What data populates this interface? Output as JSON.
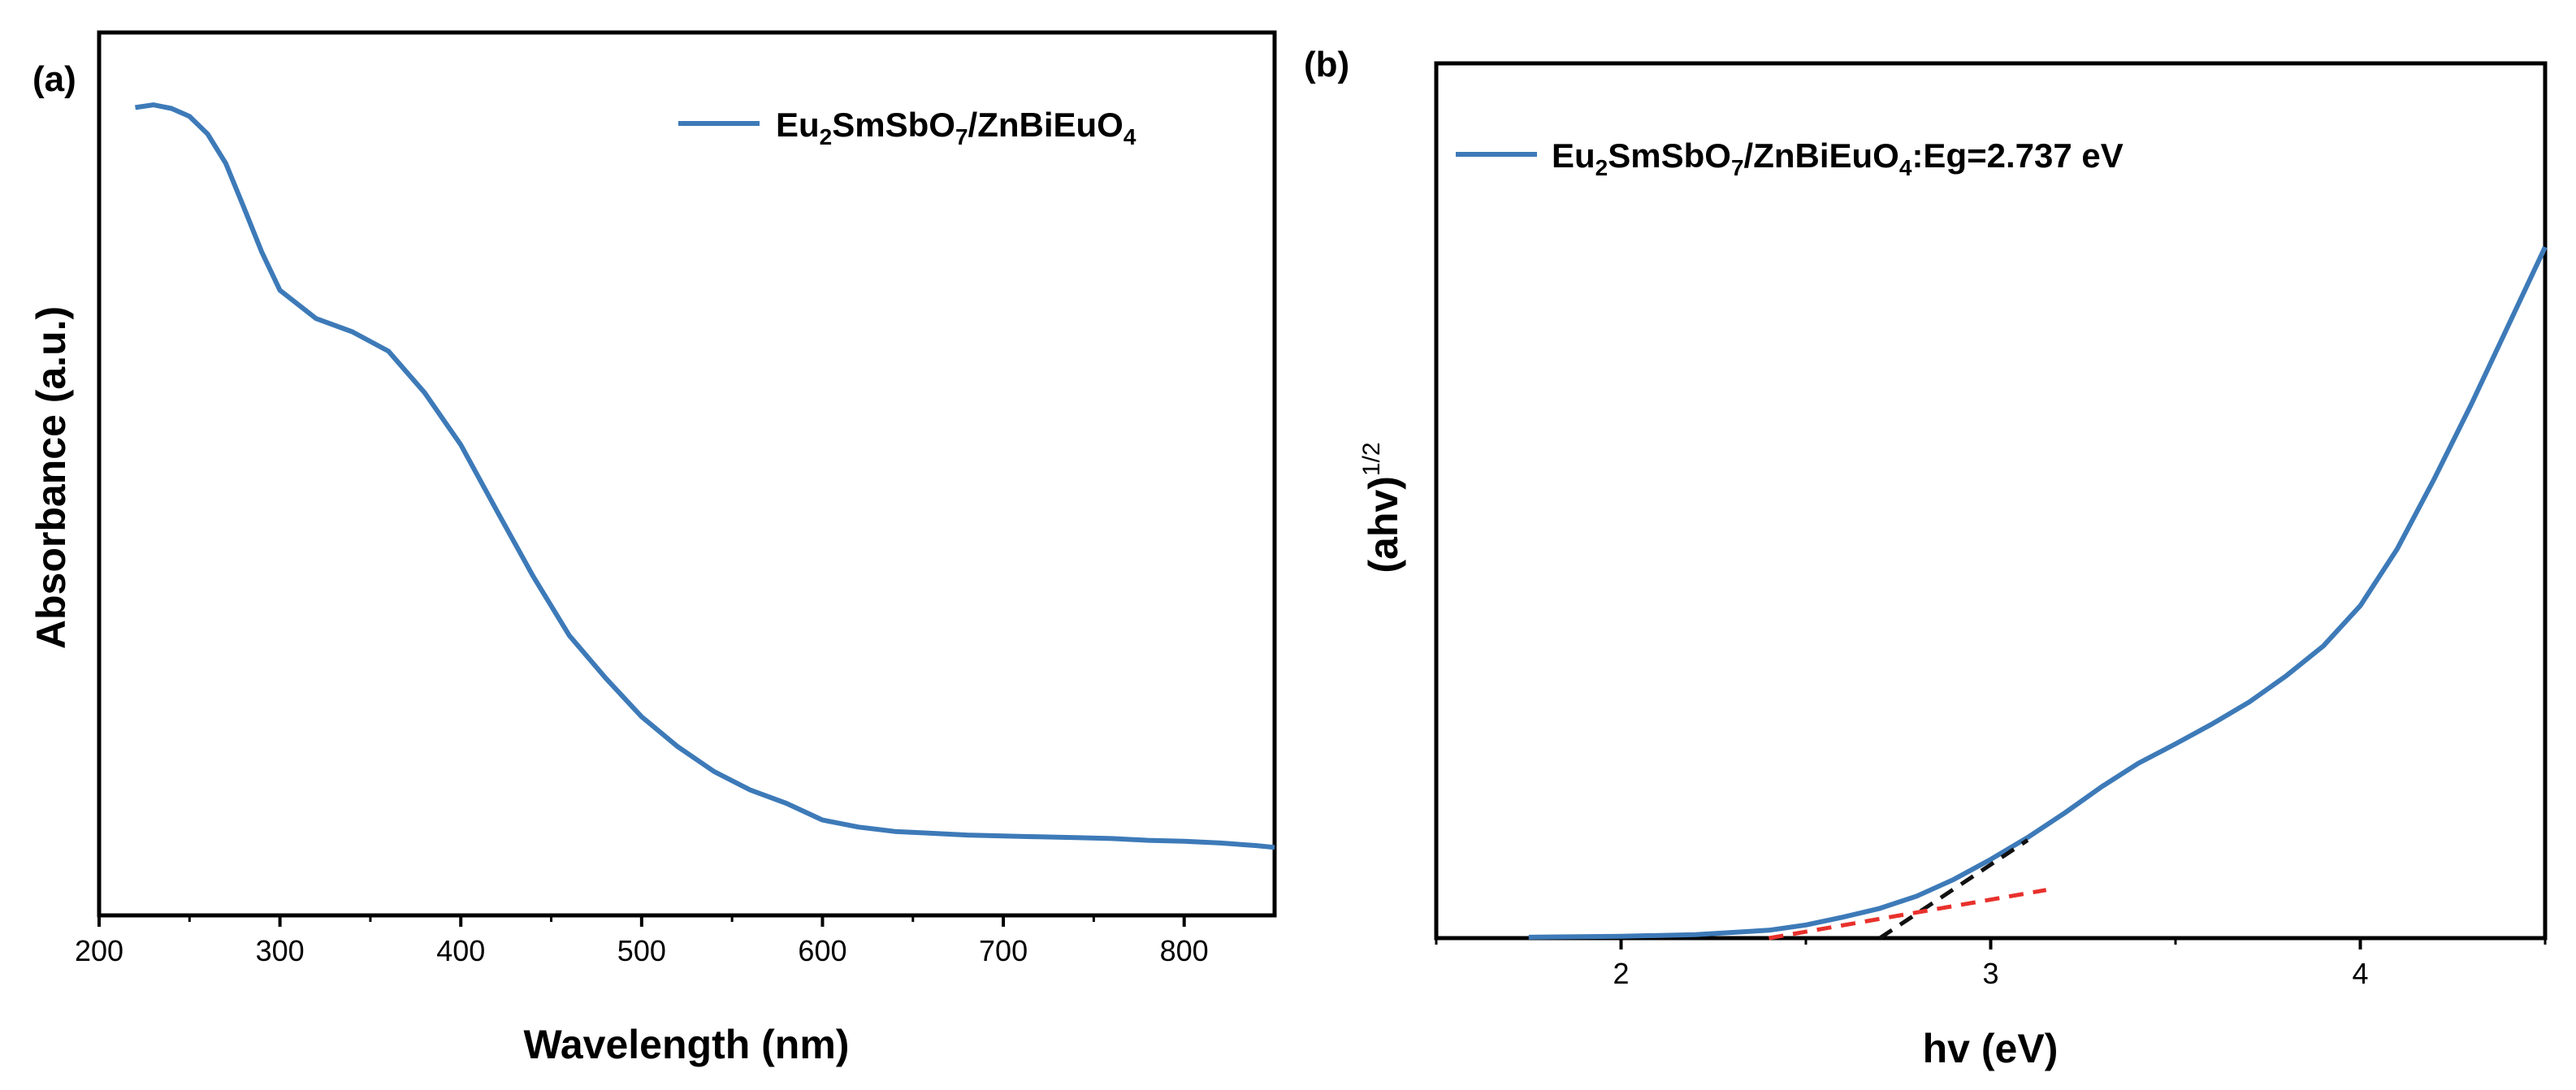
{
  "figure": {
    "panel_a_label": "(a)",
    "panel_b_label": "(b)"
  },
  "colors": {
    "series": "#3d7ab8",
    "fit_black": "#111111",
    "fit_red": "#e8312c",
    "axes": "#000000"
  },
  "chart_data": [
    {
      "type": "line",
      "panel": "(a)",
      "title": "",
      "xlabel": "Wavelength (nm)",
      "ylabel": "Absorbance (a.u.)",
      "xlim": [
        200,
        850
      ],
      "ylim": [
        0,
        1.0
      ],
      "xticks": [
        200,
        300,
        400,
        500,
        600,
        700,
        800
      ],
      "xtick_labels": [
        "200",
        "300",
        "400",
        "500",
        "600",
        "700",
        "800"
      ],
      "yticks_shown": false,
      "legend": {
        "position": "top-right",
        "parts": [
          {
            "text": "Eu",
            "sub": false
          },
          {
            "text": "2",
            "sub": true
          },
          {
            "text": "SmSbO",
            "sub": false
          },
          {
            "text": "7",
            "sub": true
          },
          {
            "text": "/ZnBiEuO",
            "sub": false
          },
          {
            "text": "4",
            "sub": true
          }
        ]
      },
      "series": [
        {
          "name": "Eu2SmSbO7/ZnBiEuO4",
          "x": [
            220,
            230,
            240,
            250,
            260,
            270,
            280,
            290,
            300,
            320,
            340,
            360,
            380,
            400,
            420,
            440,
            460,
            480,
            500,
            520,
            540,
            560,
            580,
            600,
            620,
            640,
            660,
            680,
            700,
            720,
            740,
            760,
            780,
            800,
            820,
            840,
            850
          ],
          "y": [
            0.915,
            0.918,
            0.914,
            0.905,
            0.885,
            0.852,
            0.802,
            0.751,
            0.708,
            0.676,
            0.661,
            0.639,
            0.592,
            0.533,
            0.458,
            0.384,
            0.317,
            0.269,
            0.225,
            0.191,
            0.163,
            0.142,
            0.127,
            0.108,
            0.1,
            0.095,
            0.093,
            0.091,
            0.09,
            0.089,
            0.088,
            0.087,
            0.085,
            0.084,
            0.082,
            0.079,
            0.077
          ]
        }
      ]
    },
    {
      "type": "line",
      "panel": "(b)",
      "title": "",
      "xlabel": "hv (eV)",
      "ylabel": "(ahv)",
      "ylabel_superscript": "1/2",
      "xlim": [
        1.5,
        4.5
      ],
      "ylim": [
        0,
        1.0
      ],
      "xticks": [
        2,
        3,
        4
      ],
      "xtick_labels": [
        "2",
        "3",
        "4"
      ],
      "yticks_shown": false,
      "legend": {
        "position": "top-left",
        "parts": [
          {
            "text": "Eu",
            "sub": false
          },
          {
            "text": "2",
            "sub": true
          },
          {
            "text": "SmSbO",
            "sub": false
          },
          {
            "text": "7",
            "sub": true
          },
          {
            "text": "/ZnBiEuO",
            "sub": false
          },
          {
            "text": "4",
            "sub": true
          },
          {
            "text": ":Eg=2.737 eV",
            "sub": false
          }
        ]
      },
      "series": [
        {
          "name": "Eu2SmSbO7/ZnBiEuO4",
          "x": [
            1.75,
            2.0,
            2.2,
            2.4,
            2.5,
            2.6,
            2.7,
            2.8,
            2.9,
            3.0,
            3.1,
            3.2,
            3.3,
            3.4,
            3.5,
            3.6,
            3.7,
            3.8,
            3.9,
            4.0,
            4.1,
            4.2,
            4.3,
            4.4,
            4.5
          ],
          "y": [
            0.001,
            0.002,
            0.004,
            0.009,
            0.015,
            0.024,
            0.034,
            0.048,
            0.067,
            0.09,
            0.115,
            0.143,
            0.173,
            0.2,
            0.222,
            0.245,
            0.27,
            0.3,
            0.334,
            0.38,
            0.445,
            0.525,
            0.61,
            0.7,
            0.79
          ]
        }
      ],
      "fit_lines": [
        {
          "name": "tangent",
          "style": "dashed",
          "color": "black",
          "x": [
            2.7,
            3.1
          ],
          "y": [
            0.0,
            0.112
          ]
        },
        {
          "name": "baseline",
          "style": "dashed",
          "color": "red",
          "x": [
            2.4,
            3.15
          ],
          "y": [
            0.0,
            0.055
          ]
        }
      ]
    }
  ]
}
